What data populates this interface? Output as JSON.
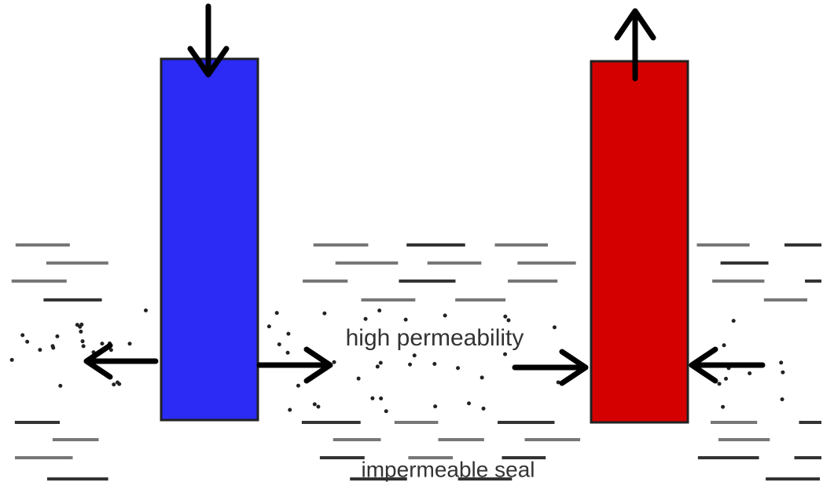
{
  "labels": {
    "permeable": "high permeability",
    "seal": "impermeable seal"
  }
}
